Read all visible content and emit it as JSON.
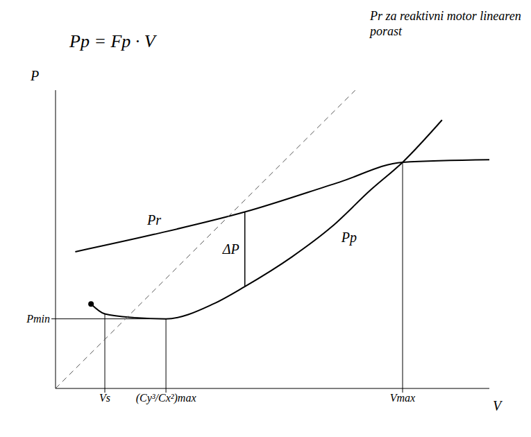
{
  "chart_data": {
    "type": "line",
    "title": "Pp = Fp · V",
    "xlabel": "V",
    "ylabel": "P",
    "xlim": [
      0,
      11
    ],
    "ylim": [
      0,
      12
    ],
    "xticks": [
      {
        "value": 1.25,
        "label": "Vs"
      },
      {
        "value": 2.8,
        "label": "(Cy³/Cx²)max"
      },
      {
        "value": 8.8,
        "label": "Vmax"
      }
    ],
    "yticks": [
      {
        "value": 2.8,
        "label": "Pmin"
      }
    ],
    "grid": false,
    "series": [
      {
        "name": "Pr",
        "color": "#000000",
        "x": [
          0.5,
          2.5,
          4.8,
          7.2,
          8.8,
          11
        ],
        "values": [
          5.5,
          6.2,
          7.1,
          8.3,
          9.1,
          9.2
        ]
      },
      {
        "name": "Pp",
        "color": "#000000",
        "marker": "start",
        "x": [
          0.9,
          1.25,
          2,
          2.8,
          4,
          4.8,
          6,
          7,
          8,
          8.8,
          9.8
        ],
        "values": [
          3.4,
          3.0,
          2.85,
          2.8,
          3.4,
          4.1,
          5.3,
          6.5,
          8.0,
          9.1,
          10.8
        ]
      },
      {
        "name": "Pr za reaktivni motor linearen porast",
        "color": "#555555",
        "line_style": "dashed",
        "x": [
          0,
          7.6
        ],
        "values": [
          0,
          12
        ]
      }
    ],
    "annotations": [
      {
        "text": "ΔP",
        "x": 4.8
      }
    ]
  }
}
